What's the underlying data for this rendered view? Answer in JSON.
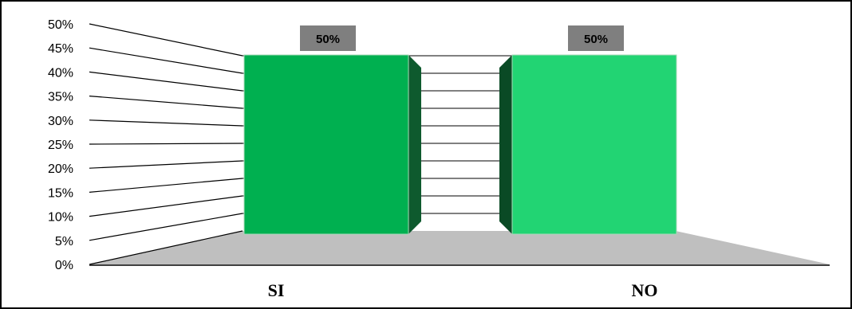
{
  "chart_data": {
    "type": "bar",
    "categories": [
      "SI",
      "NO"
    ],
    "values": [
      50,
      50
    ],
    "data_labels": [
      "50%",
      "50%"
    ],
    "ylim": [
      0,
      50
    ],
    "yticks": [
      0,
      5,
      10,
      15,
      20,
      25,
      30,
      35,
      40,
      45,
      50
    ],
    "ytick_labels": [
      "0%",
      "5%",
      "10%",
      "15%",
      "20%",
      "25%",
      "30%",
      "35%",
      "40%",
      "45%",
      "50%"
    ],
    "grid": true,
    "three_d": true,
    "colors": {
      "bars": [
        "#00b050",
        "#22d473"
      ],
      "bar_sides": [
        "#0e5a2e",
        "#0a4a25"
      ],
      "floor": "#bfbfbf",
      "label_box": "#7f7f7f",
      "frame": "#000000"
    }
  }
}
